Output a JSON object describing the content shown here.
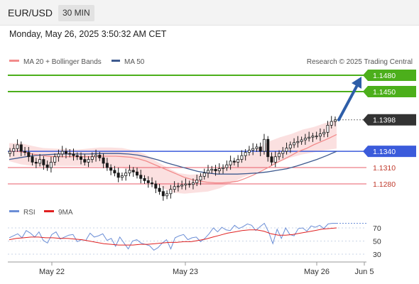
{
  "header": {
    "pair": "EUR/USD",
    "timeframe": "30 MIN"
  },
  "datetime": "Monday, May 26, 2025 3:50:32 AM CET",
  "legend": {
    "ma20": "MA 20 + Bollinger Bands",
    "ma50": "MA 50",
    "copyright": "Research © 2025 Trading Central"
  },
  "rsi_legend": {
    "rsi": "RSI",
    "ma": "9MA"
  },
  "colors": {
    "resistance": "#4caf1b",
    "support": "#3b5bdb",
    "level": "#e85c6a",
    "ma20": "#f28b8b",
    "ma50": "#3e5a8f",
    "arrow": "#2e5ea8",
    "candle": "#1a1a1a",
    "rsi": "#6b8ed6",
    "rsi_ma": "#e02020"
  },
  "chart_data": [
    {
      "type": "candlestick",
      "title": "EUR/USD 30 MIN",
      "x_ticks": [
        "May 22",
        "May 23",
        "May 26",
        "Jun 5"
      ],
      "ylim": [
        1.1235,
        1.1495
      ],
      "current_price": 1.1398,
      "levels": [
        {
          "value": 1.148,
          "label": "1.1480",
          "kind": "resistance"
        },
        {
          "value": 1.145,
          "label": "1.1450",
          "kind": "resistance"
        },
        {
          "value": 1.134,
          "label": "1.1340",
          "kind": "pivot"
        },
        {
          "value": 1.131,
          "label": "1.1310",
          "kind": "support"
        },
        {
          "value": 1.128,
          "label": "1.1280",
          "kind": "support"
        }
      ],
      "close": [
        1.134,
        1.1345,
        1.1352,
        1.134,
        1.1338,
        1.133,
        1.132,
        1.1318,
        1.1325,
        1.1315,
        1.131,
        1.132,
        1.133,
        1.1335,
        1.134,
        1.1336,
        1.1335,
        1.1332,
        1.133,
        1.1325,
        1.132,
        1.1325,
        1.133,
        1.1333,
        1.1328,
        1.1318,
        1.131,
        1.1305,
        1.13,
        1.1292,
        1.1295,
        1.13,
        1.1305,
        1.1302,
        1.1296,
        1.129,
        1.1286,
        1.1282,
        1.128,
        1.1272,
        1.1266,
        1.1258,
        1.1262,
        1.127,
        1.1275,
        1.1276,
        1.1278,
        1.128,
        1.1279,
        1.1282,
        1.1287,
        1.1294,
        1.13,
        1.1305,
        1.1307,
        1.1304,
        1.1308,
        1.131,
        1.1315,
        1.1322,
        1.132,
        1.1325,
        1.1332,
        1.1338,
        1.1342,
        1.1345,
        1.1348,
        1.134,
        1.1362,
        1.133,
        1.132,
        1.133,
        1.1336,
        1.134,
        1.1346,
        1.1352,
        1.1356,
        1.1358,
        1.1361,
        1.1364,
        1.1366,
        1.1368,
        1.1368,
        1.1372,
        1.1375,
        1.1388,
        1.1395,
        1.1398
      ],
      "ma20": [
        1.134,
        1.134,
        1.1338,
        1.1335,
        1.1333,
        1.1331,
        1.133,
        1.133,
        1.133,
        1.133,
        1.133,
        1.133,
        1.1331,
        1.1331,
        1.1331,
        1.133,
        1.1329,
        1.1326,
        1.1322,
        1.1316,
        1.131,
        1.1304,
        1.1298,
        1.1292,
        1.1288,
        1.1285,
        1.1283,
        1.1282,
        1.1282,
        1.1283,
        1.1285,
        1.129,
        1.1296,
        1.1303,
        1.131,
        1.1318,
        1.1325,
        1.1332,
        1.134,
        1.1345,
        1.1352,
        1.1358,
        1.1364,
        1.1371
      ],
      "ma50": [
        1.1325,
        1.1328,
        1.1331,
        1.1333,
        1.1334,
        1.1335,
        1.1335,
        1.1335,
        1.1335,
        1.1336,
        1.1336,
        1.1336,
        1.1335,
        1.1333,
        1.1329,
        1.1324,
        1.1318,
        1.1313,
        1.1308,
        1.1303,
        1.13,
        1.1298,
        1.1298,
        1.1298,
        1.1299,
        1.13,
        1.1302,
        1.1305,
        1.1308,
        1.1313,
        1.1319,
        1.1325,
        1.1332,
        1.134
      ],
      "bb_upper": [
        1.1355,
        1.1355,
        1.135,
        1.1346,
        1.1345,
        1.1344,
        1.1343,
        1.1345,
        1.1347,
        1.1347,
        1.1346,
        1.1342,
        1.1335,
        1.1322,
        1.131,
        1.13,
        1.1297,
        1.1298,
        1.1305,
        1.1312,
        1.1322,
        1.1332,
        1.1345,
        1.1358,
        1.1366,
        1.1372,
        1.138,
        1.1385,
        1.1392,
        1.1398
      ],
      "bb_lower": [
        1.1322,
        1.1316,
        1.1313,
        1.1312,
        1.1313,
        1.1313,
        1.1313,
        1.1312,
        1.1312,
        1.1312,
        1.1308,
        1.1298,
        1.1286,
        1.1274,
        1.1264,
        1.1262,
        1.1264,
        1.1266,
        1.1272,
        1.1282,
        1.1292,
        1.13,
        1.131,
        1.132,
        1.1328,
        1.1334,
        1.1338,
        1.1342,
        1.1345
      ]
    },
    {
      "type": "line",
      "title": "RSI",
      "y_ticks": [
        "70",
        "50",
        "30"
      ],
      "ylim": [
        20,
        82
      ],
      "series": [
        {
          "name": "RSI",
          "values": [
            55,
            58,
            61,
            55,
            66,
            62,
            56,
            64,
            51,
            47,
            60,
            64,
            53,
            56,
            59,
            60,
            49,
            52,
            51,
            62,
            56,
            58,
            61,
            51,
            54,
            42,
            56,
            47,
            38,
            50,
            52,
            47,
            45,
            43,
            36,
            40,
            47,
            52,
            38,
            55,
            58,
            60,
            52,
            55,
            56,
            49,
            54,
            61,
            70,
            64,
            71,
            67,
            66,
            74,
            69,
            72,
            76,
            74,
            66,
            72,
            77,
            64,
            46,
            68,
            54,
            70,
            60,
            58,
            69,
            70,
            65,
            73,
            71,
            74,
            69,
            76,
            77,
            77
          ]
        },
        {
          "name": "9MA",
          "values": [
            52,
            54,
            55,
            56,
            56,
            55,
            55,
            54,
            54,
            53,
            52,
            50,
            48,
            46,
            45,
            44,
            44,
            44,
            45,
            45,
            46,
            47,
            48,
            48,
            49,
            49,
            51,
            53,
            56,
            59,
            62,
            64,
            66,
            67,
            67,
            65,
            61,
            59,
            59,
            60,
            62,
            64,
            66,
            68,
            69,
            70
          ]
        }
      ]
    }
  ]
}
